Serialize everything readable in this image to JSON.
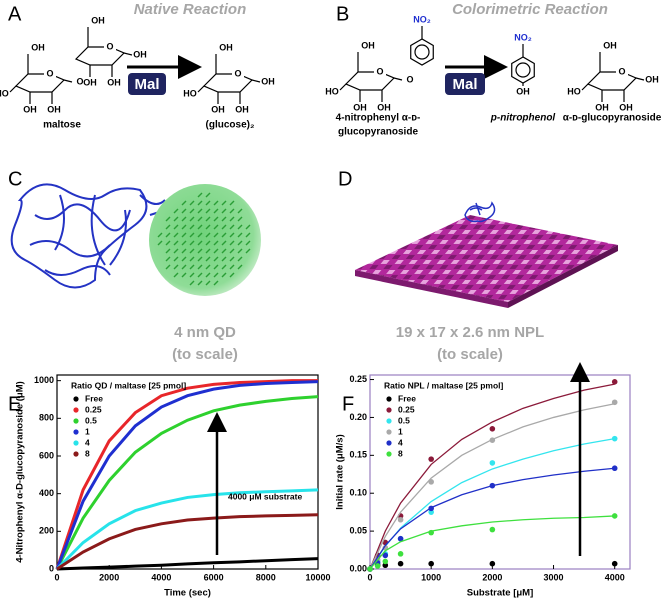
{
  "reaction_a": {
    "label": "A",
    "title": "Native Reaction",
    "enzyme": "Mal",
    "substrate": {
      "name": "maltose",
      "rings": [
        [
          "OH",
          "O",
          "O",
          "HO",
          "OH",
          "OH"
        ],
        [
          "OH",
          "O",
          "OH",
          "OH",
          "OH"
        ]
      ]
    },
    "product": {
      "name": "(glucose)₂",
      "rings": [
        [
          "OH",
          "O",
          "OH",
          "HO",
          "OH",
          "OH"
        ]
      ]
    }
  },
  "reaction_b": {
    "label": "B",
    "title": "Colorimetric Reaction",
    "enzyme": "Mal",
    "substrate": {
      "name": [
        "4-nitrophenyl α-ᴅ-",
        "glucopyranoside"
      ],
      "rings": [
        [
          "OH",
          "O",
          "O",
          "HO",
          "OH",
          "OH"
        ]
      ],
      "phenyl": [
        "NO₂"
      ]
    },
    "product_1": {
      "name": "p-nitrophenol",
      "phenyl": [
        "NO₂",
        "OH"
      ]
    },
    "product_2": {
      "name": "α-ᴅ-glucopyranoside",
      "rings": [
        [
          "OH",
          "O",
          "OH",
          "HO",
          "OH",
          "OH"
        ]
      ]
    }
  },
  "panel_c": {
    "label": "C",
    "caption": [
      "4 nm QD",
      "(to scale)"
    ]
  },
  "panel_d": {
    "label": "D",
    "caption": [
      "19 x 17 x 2.6 nm NPL",
      "(to scale)"
    ]
  },
  "chart_data": [
    {
      "type": "line",
      "panel_label": "E",
      "x_label": "Time (sec)",
      "y_label": "4-Nitrophenyl α-D-glucopyranoside (μM)",
      "legend_title": "Ratio QD / maltase [25 pmol]",
      "annotation": "4000 μM substrate",
      "xlim": [
        0,
        10000
      ],
      "ylim": [
        0,
        1030
      ],
      "xticks": [
        0,
        2000,
        4000,
        6000,
        8000,
        10000
      ],
      "yticks": [
        0,
        200,
        400,
        600,
        800,
        1000
      ],
      "x": [
        0,
        1000,
        2000,
        3000,
        4000,
        5000,
        6000,
        7000,
        8000,
        9000,
        10000
      ],
      "series": [
        {
          "name": "Free",
          "color": "#000000",
          "values": [
            0,
            5,
            10,
            15,
            20,
            27,
            33,
            38,
            44,
            50,
            55
          ]
        },
        {
          "name": "0.25",
          "color": "#e8262a",
          "values": [
            0,
            420,
            680,
            830,
            920,
            960,
            980,
            990,
            995,
            1000,
            1000
          ]
        },
        {
          "name": "0.5",
          "color": "#2ed12e",
          "values": [
            0,
            270,
            470,
            620,
            720,
            790,
            840,
            870,
            890,
            905,
            915
          ]
        },
        {
          "name": "1",
          "color": "#1f2fd0",
          "values": [
            0,
            360,
            600,
            760,
            860,
            920,
            955,
            975,
            985,
            990,
            995
          ]
        },
        {
          "name": "4",
          "color": "#27e3ea",
          "values": [
            0,
            140,
            240,
            310,
            350,
            380,
            395,
            405,
            410,
            415,
            420
          ]
        },
        {
          "name": "8",
          "color": "#8b1a1a",
          "values": [
            0,
            90,
            160,
            210,
            240,
            260,
            270,
            278,
            282,
            285,
            288
          ]
        }
      ]
    },
    {
      "type": "scatter",
      "panel_label": "F",
      "x_label": "Substrate [μM]",
      "y_label": "Initial rate (μM/s)",
      "legend_title": "Ratio NPL / maltase [25 pmol]",
      "xlim": [
        0,
        4250
      ],
      "ylim": [
        0,
        0.256
      ],
      "xticks": [
        0,
        1000,
        2000,
        3000,
        4000
      ],
      "yticks": [
        {
          "value": 0,
          "label": "0.00"
        },
        0.05,
        {
          "value": 0.1,
          "label": "0.10"
        },
        0.15,
        {
          "value": 0.2,
          "label": "0.20"
        },
        0.25
      ],
      "x": [
        0,
        125,
        250,
        500,
        1000,
        2000,
        4000
      ],
      "fit_x": [
        0,
        250,
        500,
        1000,
        1500,
        2000,
        2500,
        3000,
        3500,
        4000
      ],
      "series": [
        {
          "name": "Free",
          "color": "#000000",
          "values": [
            0,
            0.005,
            0.005,
            0.007,
            0.007,
            0.007,
            0.007
          ]
        },
        {
          "name": "0.25",
          "color": "#8b1a3a",
          "values": [
            0,
            0.018,
            0.035,
            0.07,
            0.145,
            0.185,
            0.247
          ],
          "fit": [
            0,
            0.05,
            0.087,
            0.138,
            0.171,
            0.194,
            0.212,
            0.225,
            0.236,
            0.244
          ]
        },
        {
          "name": "0.5",
          "color": "#33e5ee",
          "values": [
            0,
            0.01,
            0.02,
            0.04,
            0.075,
            0.14,
            0.172
          ],
          "fit": [
            0,
            0.03,
            0.054,
            0.089,
            0.114,
            0.132,
            0.145,
            0.156,
            0.165,
            0.172
          ]
        },
        {
          "name": "1",
          "color": "#a9a9a9",
          "values": [
            0,
            0.012,
            0.028,
            0.065,
            0.115,
            0.17,
            0.22
          ],
          "fit": [
            0,
            0.043,
            0.075,
            0.12,
            0.15,
            0.171,
            0.1875,
            0.2,
            0.21,
            0.218
          ]
        },
        {
          "name": "4",
          "color": "#2030c8",
          "values": [
            0,
            0.008,
            0.018,
            0.04,
            0.08,
            0.11,
            0.133
          ],
          "fit": [
            0,
            0.031,
            0.053,
            0.081,
            0.098,
            0.11,
            0.118,
            0.124,
            0.129,
            0.133
          ]
        },
        {
          "name": "8",
          "color": "#3ee03e",
          "values": [
            0,
            0.004,
            0.01,
            0.02,
            0.048,
            0.052,
            0.07
          ],
          "fit": [
            0,
            0.024,
            0.036,
            0.05,
            0.057,
            0.062,
            0.065,
            0.067,
            0.068,
            0.07
          ]
        }
      ]
    }
  ]
}
